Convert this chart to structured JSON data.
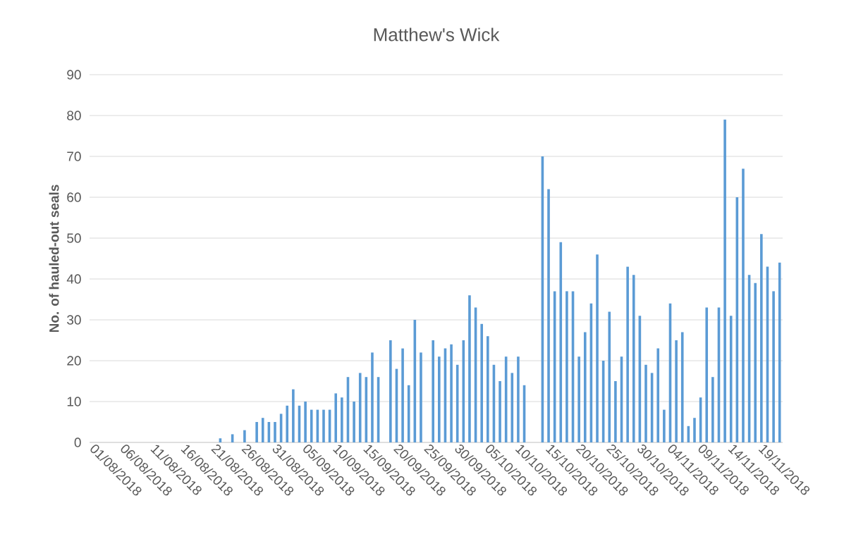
{
  "chart_data": {
    "type": "bar",
    "title": "Matthew's Wick",
    "ylabel": "No. of hauled-out seals",
    "categories": [
      "01/08/2018",
      null,
      null,
      null,
      null,
      "06/08/2018",
      null,
      null,
      null,
      null,
      "11/08/2018",
      null,
      null,
      null,
      null,
      "16/08/2018",
      null,
      null,
      null,
      null,
      "21/08/2018",
      null,
      null,
      null,
      null,
      "26/08/2018",
      null,
      null,
      null,
      null,
      "31/08/2018",
      null,
      null,
      null,
      null,
      "05/09/2018",
      null,
      null,
      null,
      null,
      "10/09/2018",
      null,
      null,
      null,
      null,
      "15/09/2018",
      null,
      null,
      null,
      null,
      "20/09/2018",
      null,
      null,
      null,
      null,
      "25/09/2018",
      null,
      null,
      null,
      null,
      "30/09/2018",
      null,
      null,
      null,
      null,
      "05/10/2018",
      null,
      null,
      null,
      null,
      "10/10/2018",
      null,
      null,
      null,
      null,
      "15/10/2018",
      null,
      null,
      null,
      null,
      "20/10/2018",
      null,
      null,
      null,
      null,
      "25/10/2018",
      null,
      null,
      null,
      null,
      "30/10/2018",
      null,
      null,
      null,
      null,
      "04/11/2018",
      null,
      null,
      null,
      null,
      "09/11/2018",
      null,
      null,
      null,
      null,
      "14/11/2018",
      null,
      null,
      null,
      null,
      "19/11/2018",
      null,
      null,
      null
    ],
    "values": [
      null,
      null,
      null,
      null,
      null,
      null,
      null,
      null,
      null,
      null,
      null,
      null,
      null,
      null,
      null,
      null,
      null,
      null,
      null,
      null,
      null,
      1,
      null,
      2,
      null,
      3,
      null,
      5,
      6,
      5,
      5,
      7,
      9,
      13,
      9,
      10,
      8,
      8,
      8,
      8,
      12,
      11,
      16,
      10,
      17,
      16,
      22,
      16,
      null,
      25,
      18,
      23,
      14,
      30,
      22,
      null,
      25,
      21,
      23,
      24,
      19,
      25,
      36,
      33,
      29,
      26,
      19,
      15,
      21,
      17,
      21,
      14,
      null,
      null,
      70,
      62,
      37,
      49,
      37,
      37,
      21,
      27,
      34,
      46,
      20,
      32,
      15,
      21,
      43,
      41,
      31,
      19,
      17,
      23,
      8,
      34,
      25,
      27,
      4,
      6,
      11,
      33,
      16,
      33,
      79,
      31,
      60,
      67,
      41,
      39,
      51,
      43,
      37,
      44
    ],
    "color": "#5b9bd5",
    "ylim": [
      0,
      90
    ],
    "yticks": [
      0,
      10,
      20,
      30,
      40,
      50,
      60,
      70,
      80,
      90
    ],
    "grid": "y"
  }
}
